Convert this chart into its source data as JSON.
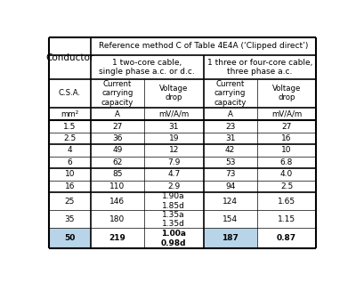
{
  "title_row": "Reference method C of Table 4E4A (‘Clipped direct’)",
  "sub_header_left": "1 two-core cable,\nsingle phase a.c. or d.c.",
  "sub_header_right": "1 three or four-core cable,\nthree phase a.c.",
  "col_header_row1": [
    "C.S.A.",
    "Current\ncarrying\ncapacity",
    "Voltage\ndrop",
    "Current\ncarrying\ncapacity",
    "Voltage\ndrop"
  ],
  "col_header_row2": [
    "mm²",
    "A",
    "mV/A/m",
    "A",
    "mV/A/m"
  ],
  "rows": [
    [
      "1.5",
      "27",
      "31",
      "23",
      "27"
    ],
    [
      "2.5",
      "36",
      "19",
      "31",
      "16"
    ],
    [
      "4",
      "49",
      "12",
      "42",
      "10"
    ],
    [
      "6",
      "62",
      "7.9",
      "53",
      "6.8"
    ],
    [
      "10",
      "85",
      "4.7",
      "73",
      "4.0"
    ],
    [
      "16",
      "110",
      "2.9",
      "94",
      "2.5"
    ],
    [
      "25",
      "146",
      "1.90a\n1.85d",
      "124",
      "1.65"
    ],
    [
      "35",
      "180",
      "1.35a\n1.35d",
      "154",
      "1.15"
    ],
    [
      "50",
      "219",
      "1.00a\n0.98d",
      "187",
      "0.87"
    ]
  ],
  "highlight_last_row_cols": [
    0,
    3
  ],
  "highlight_color": "#b8d4e8",
  "background_color": "#ffffff",
  "conductor_label": "Conductor",
  "font_family": "DejaVu Sans",
  "outer_lw": 1.5,
  "thick_lw": 1.2,
  "thin_lw": 0.5
}
